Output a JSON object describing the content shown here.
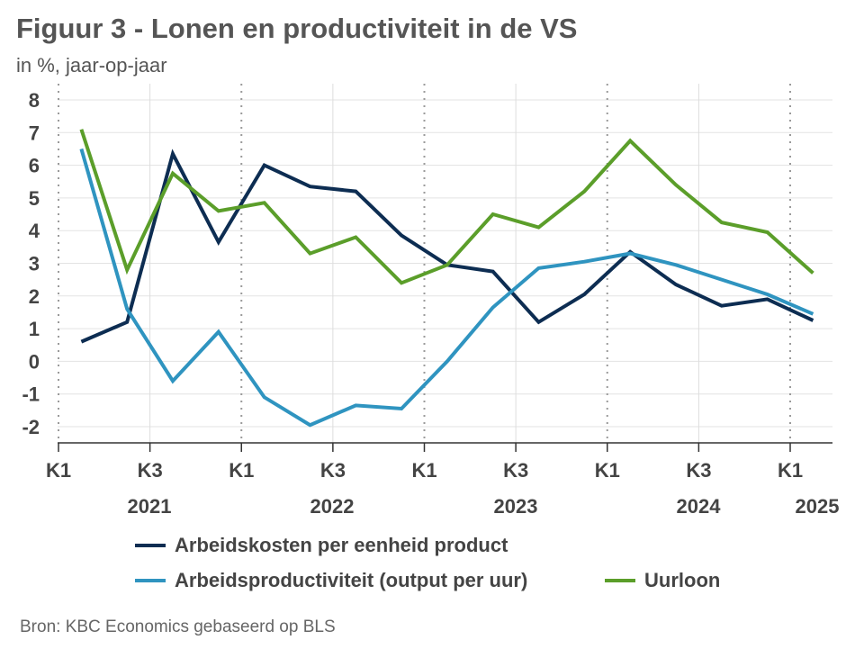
{
  "title": "Figuur 3 - Lonen en productiviteit in de VS",
  "subtitle": "in %, jaar-op-jaar",
  "source": "Bron: KBC Economics gebaseerd op BLS",
  "chart_data": {
    "type": "line",
    "x": [
      "2021K1",
      "2021K2",
      "2021K3",
      "2021K4",
      "2022K1",
      "2022K2",
      "2022K3",
      "2022K4",
      "2023K1",
      "2023K2",
      "2023K3",
      "2023K4",
      "2024K1",
      "2024K2",
      "2024K3",
      "2024K4",
      "2025K1"
    ],
    "x_tick_labels": [
      "K1",
      "K3",
      "K1",
      "K3",
      "K1",
      "K3",
      "K1",
      "K3",
      "K1"
    ],
    "year_labels": [
      "2021",
      "2022",
      "2023",
      "2024",
      "2025"
    ],
    "ylim": [
      -2,
      8
    ],
    "y_ticks": [
      "8",
      "7",
      "6",
      "5",
      "4",
      "3",
      "2",
      "1",
      "0",
      "-1",
      "-2"
    ],
    "grid": true,
    "legend_position": "bottom",
    "series": [
      {
        "name": "Arbeidskosten per eenheid product",
        "color": "#0d2d52",
        "values": [
          0.6,
          1.2,
          6.35,
          3.65,
          6.0,
          5.35,
          5.2,
          3.85,
          2.95,
          2.75,
          1.2,
          2.05,
          3.35,
          2.35,
          1.7,
          1.9,
          1.25
        ]
      },
      {
        "name": "Arbeidsproductiviteit (output per uur)",
        "color": "#2f94c0",
        "values": [
          6.5,
          1.6,
          -0.6,
          0.9,
          -1.1,
          -1.95,
          -1.35,
          -1.45,
          0.0,
          1.65,
          2.85,
          3.05,
          3.3,
          2.95,
          2.5,
          2.05,
          1.45
        ]
      },
      {
        "name": "Uurloon",
        "color": "#5b9e2a",
        "values": [
          7.1,
          2.8,
          5.75,
          4.6,
          4.85,
          3.3,
          3.8,
          2.4,
          2.95,
          4.5,
          4.1,
          5.2,
          6.75,
          5.4,
          4.25,
          3.95,
          2.7
        ]
      }
    ]
  }
}
